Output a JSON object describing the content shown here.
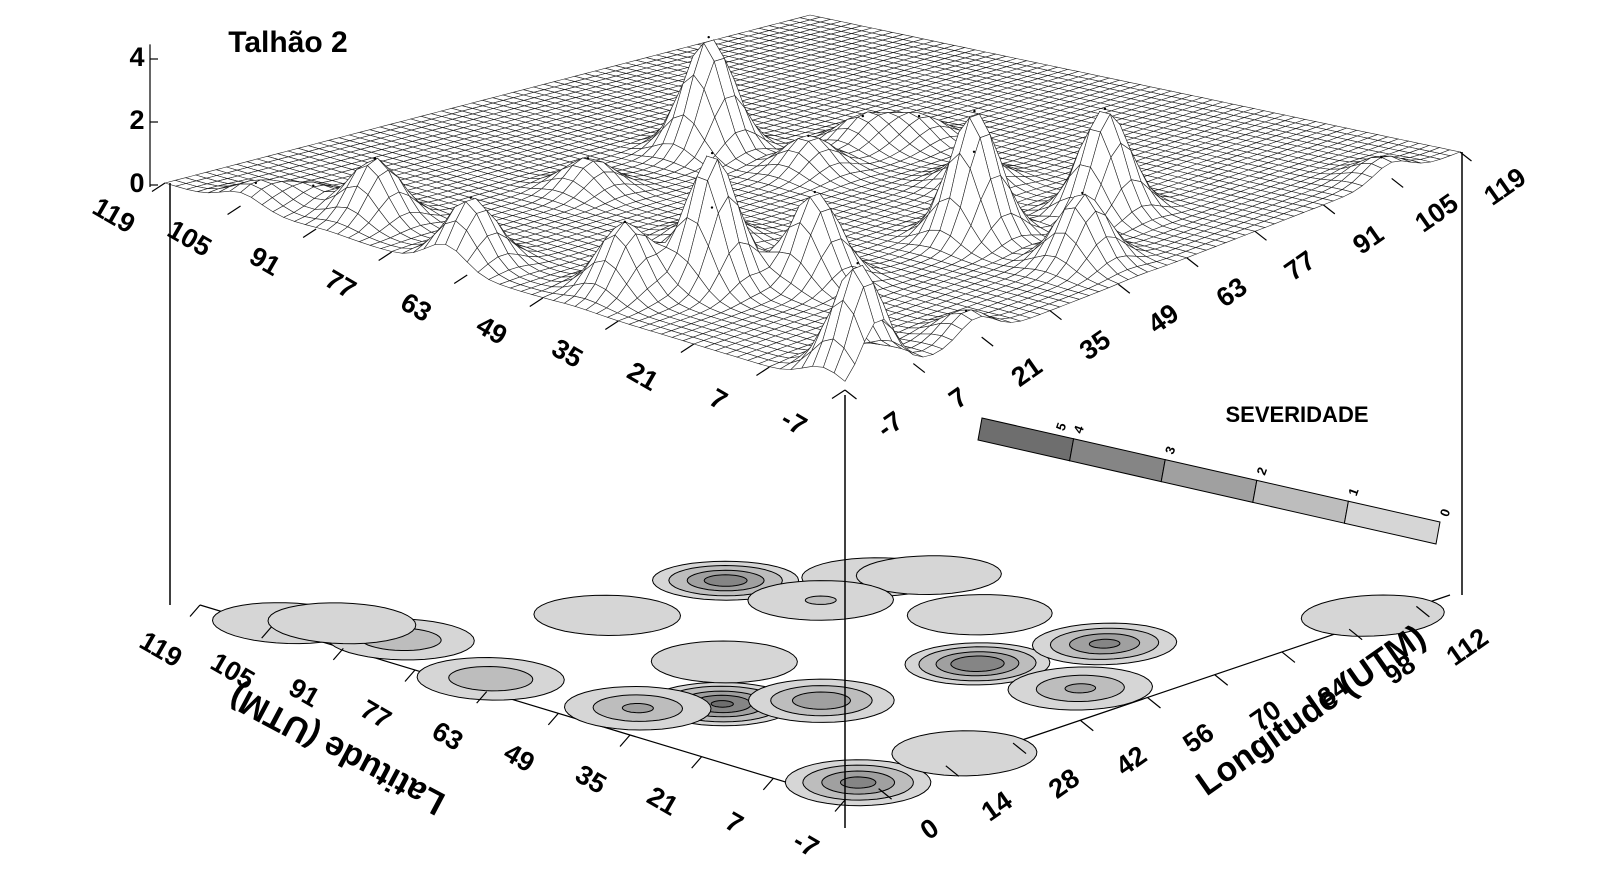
{
  "chart_data": {
    "type": "surface",
    "title": "Talhão 2",
    "xlabel": "Longitude (UTM)",
    "ylabel": "Latitude (UTM)",
    "xlim": [
      -7,
      119
    ],
    "ylim": [
      -7,
      119
    ],
    "zlim": [
      0,
      4.4
    ],
    "zticks": [
      0,
      2,
      4
    ],
    "xticks_top": [
      -7,
      7,
      21,
      35,
      49,
      63,
      77,
      91,
      105,
      119
    ],
    "yticks_top": [
      -7,
      7,
      21,
      35,
      49,
      63,
      77,
      91,
      105,
      119
    ],
    "xticks": [
      0,
      14,
      28,
      42,
      56,
      70,
      84,
      98,
      112
    ],
    "yticks": [
      -7,
      7,
      21,
      35,
      49,
      63,
      77,
      91,
      105,
      119
    ],
    "peaks": {
      "x": [
        58,
        13,
        52,
        71,
        0,
        24,
        3,
        53,
        -2,
        2.5,
        20,
        105,
        74,
        80,
        33,
        60,
        70,
        -4,
        2,
        28
      ],
      "y": [
        79,
        36,
        23,
        16,
        -3,
        27,
        43,
        3.5,
        67,
        89,
        -5,
        -5,
        65,
        60,
        78,
        62,
        40,
        105,
        100,
        50
      ],
      "z": [
        3.6,
        4.2,
        4,
        3.3,
        3.4,
        2.8,
        2.2,
        2.2,
        2,
        1.9,
        0.8,
        0.6,
        0.9,
        0.8,
        1,
        1.1,
        1,
        0.6,
        0.5,
        1
      ]
    },
    "legend": {
      "title": "SEVERIDADE",
      "levels": [
        5,
        4,
        3,
        2,
        1,
        0
      ],
      "colors": [
        "#6e6e6e",
        "#858585",
        "#a0a0a0",
        "#bdbdbd",
        "#d6d6d6"
      ]
    }
  }
}
